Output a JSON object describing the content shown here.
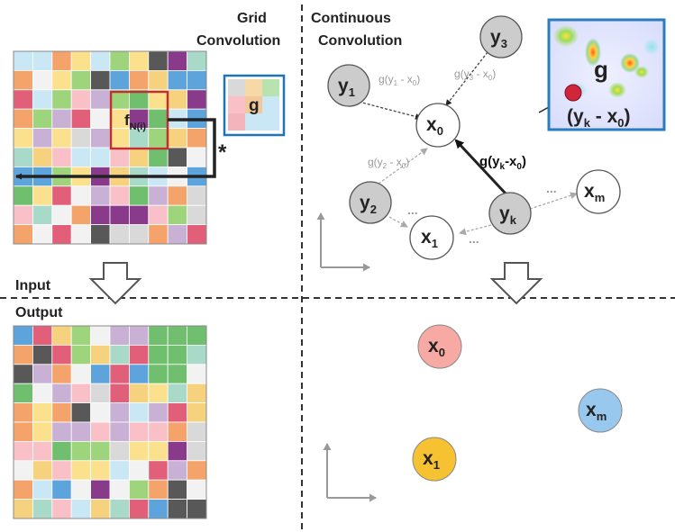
{
  "labels": {
    "grid_convolution_line1": "Grid",
    "grid_convolution_line2": "Convolution",
    "continuous_convolution_line1": "Continuous",
    "continuous_convolution_line2": "Convolution",
    "input": "Input",
    "output": "Output",
    "kernel_g": "g",
    "receptive_field": "f",
    "receptive_field_sub": "N(i)",
    "conv_operator": "*",
    "heatmap_g": "g",
    "heatmap_offset": "(y",
    "heatmap_offset_sub": "k",
    "heatmap_offset_rest": " - x",
    "heatmap_offset_sub2": "0",
    "heatmap_offset_close": ")"
  },
  "nodes": {
    "y1": {
      "name": "y",
      "sub": "1"
    },
    "y2": {
      "name": "y",
      "sub": "2"
    },
    "y3": {
      "name": "y",
      "sub": "3"
    },
    "yk": {
      "name": "y",
      "sub": "k"
    },
    "x0": {
      "name": "x",
      "sub": "0"
    },
    "x1": {
      "name": "x",
      "sub": "1"
    },
    "xm": {
      "name": "x",
      "sub": "m"
    },
    "out_x0": {
      "name": "x",
      "sub": "0"
    },
    "out_x1": {
      "name": "x",
      "sub": "1"
    },
    "out_xm": {
      "name": "x",
      "sub": "m"
    }
  },
  "edges": {
    "g1": {
      "pre": "g(y",
      "s1": "1",
      "mid": " - x",
      "s2": "0",
      "post": ")"
    },
    "g2": {
      "pre": "g(y",
      "s1": "2",
      "mid": " - x",
      "s2": "0",
      "post": ")"
    },
    "g3": {
      "pre": "g(y",
      "s1": "3",
      "mid": " - x",
      "s2": "0",
      "post": ")"
    },
    "gk": {
      "pre": "g(y",
      "s1": "k",
      "mid": "-x",
      "s2": "0",
      "post": ")"
    }
  },
  "ellipses": [
    "...",
    "...",
    "...",
    "..."
  ],
  "colors": {
    "grey_node": "#cccccc",
    "white_node": "#ffffff",
    "out_x0": "#f6aaa3",
    "out_x1": "#f6c232",
    "out_xm": "#99c8ee",
    "highlight_box": "#c0302f",
    "kernel_box": "#1f74b4",
    "heatmap_frame": "#2b7bbf",
    "heatmap_dot": "#d1263a",
    "palette": [
      "#e15f78",
      "#f4a46a",
      "#9ed47c",
      "#a8d9c9",
      "#5da3dc",
      "#fbe08e",
      "#c9b1d6",
      "#585858",
      "#6fbf6e",
      "#8a3a8a",
      "#f7d27e",
      "#d9d9d9",
      "#f9c0c8",
      "#c9e7f4",
      "#f2f2f2"
    ]
  }
}
